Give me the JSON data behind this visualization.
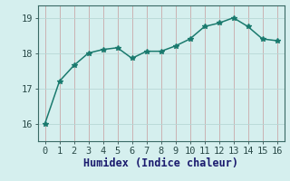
{
  "x": [
    0,
    1,
    2,
    3,
    4,
    5,
    6,
    7,
    8,
    9,
    10,
    11,
    12,
    13,
    14,
    15,
    16
  ],
  "y": [
    16.0,
    17.2,
    17.65,
    18.0,
    18.1,
    18.15,
    17.85,
    18.05,
    18.05,
    18.2,
    18.4,
    18.75,
    18.85,
    19.0,
    18.75,
    18.4,
    18.35
  ],
  "xlabel": "Humidex (Indice chaleur)",
  "xlim": [
    -0.5,
    16.5
  ],
  "ylim": [
    15.5,
    19.35
  ],
  "yticks": [
    16,
    17,
    18,
    19
  ],
  "xticks": [
    0,
    1,
    2,
    3,
    4,
    5,
    6,
    7,
    8,
    9,
    10,
    11,
    12,
    13,
    14,
    15,
    16
  ],
  "line_color": "#1a7a6e",
  "marker": "*",
  "marker_size": 4,
  "bg_color": "#d5efee",
  "grid_color_major": "#b8d8d5",
  "grid_color_minor": "#c8e8e5",
  "axis_color": "#3a6a65",
  "tick_label_color": "#2a4a48",
  "xlabel_color": "#1a1a6e",
  "tick_fontsize": 7.5,
  "xlabel_fontsize": 8.5
}
